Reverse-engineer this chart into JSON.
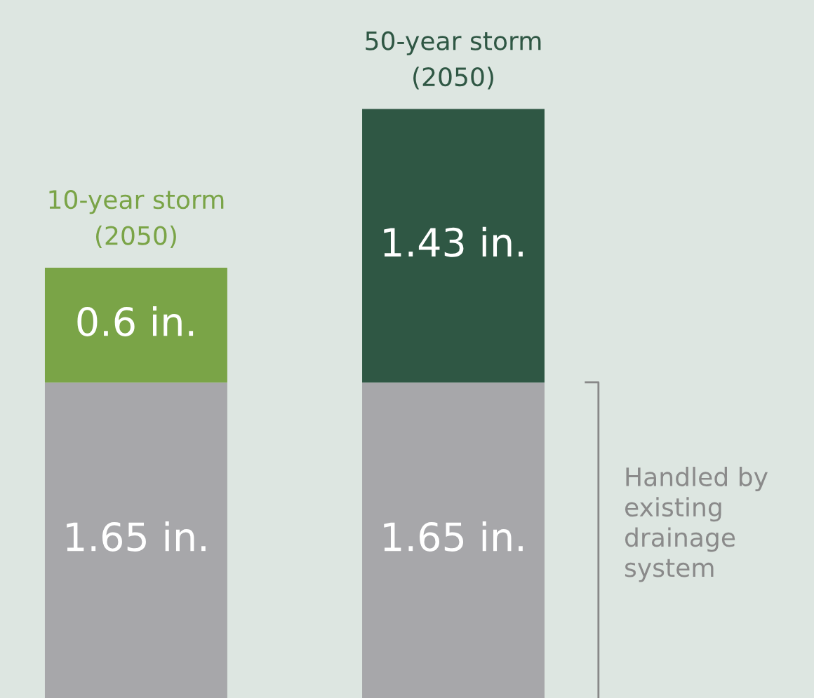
{
  "chart_data": {
    "type": "bar",
    "stacked": true,
    "categories": [
      "10-year storm\n(2050)",
      "50-year storm\n(2050)"
    ],
    "series": [
      {
        "colors": [
          "#a7a7aa",
          "#a7a7aa"
        ],
        "values": [
          1.65,
          1.65
        ],
        "value_labels": [
          "1.65 in.",
          "1.65 in."
        ]
      },
      {
        "colors": [
          "#7aa447",
          "#2f5744"
        ],
        "values": [
          0.6,
          1.43
        ],
        "value_labels": [
          "0.6 in.",
          "1.43 in."
        ]
      }
    ],
    "annotations": [
      "Handled by\nexisting\ndrainage\nsystem"
    ]
  }
}
